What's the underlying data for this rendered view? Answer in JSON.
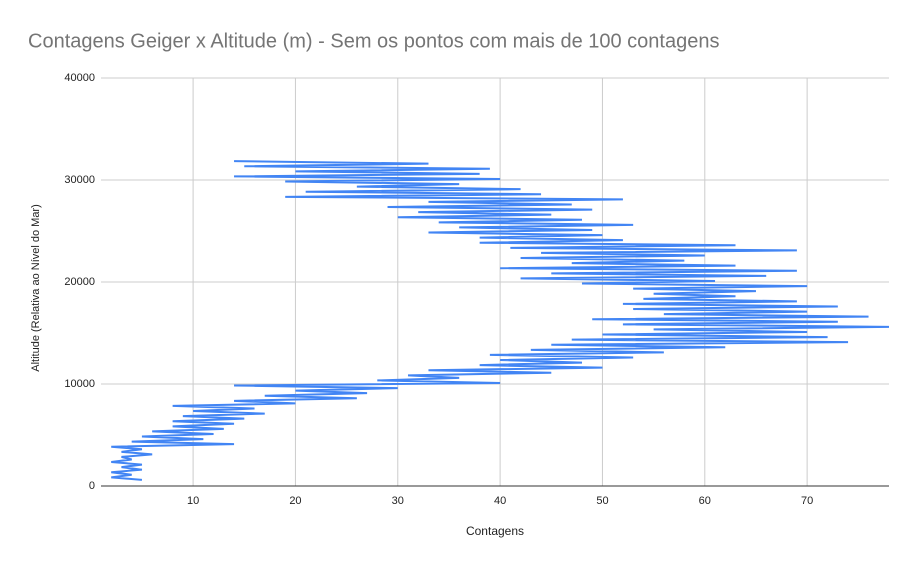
{
  "chart_data": {
    "type": "line",
    "title": "Contagens Geiger x Altitude (m) - Sem os pontos com mais de 100 contagens",
    "x_label": "Contagens",
    "y_label": "Altitude (Relativa ao Nível do Mar)",
    "xlim": [
      1,
      78
    ],
    "xticks": [
      10,
      20,
      30,
      40,
      50,
      60,
      70
    ],
    "ylim": [
      0,
      40000
    ],
    "yticks": [
      0,
      10000,
      20000,
      30000,
      40000
    ],
    "grid": true,
    "x": [
      5,
      2,
      4,
      2,
      5,
      3,
      5,
      2,
      4,
      3,
      6,
      3,
      5,
      2,
      14,
      4,
      11,
      5,
      12,
      6,
      13,
      8,
      14,
      8,
      15,
      9,
      17,
      10,
      16,
      8,
      20,
      14,
      26,
      17,
      27,
      20,
      30,
      14,
      40,
      28,
      36,
      31,
      45,
      33,
      50,
      38,
      48,
      40,
      53,
      39,
      56,
      43,
      62,
      45,
      74,
      47,
      72,
      50,
      70,
      55,
      78,
      52,
      73,
      49,
      76,
      56,
      70,
      53,
      73,
      52,
      69,
      54,
      63,
      55,
      65,
      53,
      70,
      48,
      61,
      42,
      66,
      45,
      69,
      40,
      63,
      47,
      58,
      42,
      60,
      44,
      69,
      41,
      63,
      38,
      52,
      38,
      50,
      33,
      49,
      36,
      53,
      34,
      48,
      30,
      45,
      32,
      49,
      29,
      47,
      33,
      52,
      19,
      44,
      21,
      42,
      26,
      36,
      19,
      40,
      14,
      38,
      20,
      39,
      15,
      33,
      14
    ],
    "series": [
      {
        "name": "Altitude (Relativa ao Nível do Mar)",
        "color": "#4285f4",
        "values": [
          600,
          850,
          1100,
          1350,
          1600,
          1850,
          2100,
          2350,
          2600,
          2850,
          3100,
          3350,
          3600,
          3850,
          4100,
          4350,
          4600,
          4850,
          5100,
          5350,
          5600,
          5850,
          6100,
          6350,
          6600,
          6850,
          7100,
          7350,
          7600,
          7850,
          8100,
          8350,
          8600,
          8850,
          9100,
          9350,
          9600,
          9850,
          10100,
          10350,
          10600,
          10850,
          11100,
          11350,
          11600,
          11850,
          12100,
          12350,
          12600,
          12850,
          13100,
          13350,
          13600,
          13850,
          14100,
          14350,
          14600,
          14850,
          15100,
          15350,
          15600,
          15850,
          16100,
          16350,
          16600,
          16850,
          17100,
          17350,
          17600,
          17850,
          18100,
          18350,
          18600,
          18850,
          19100,
          19350,
          19600,
          19850,
          20100,
          20350,
          20600,
          20850,
          21100,
          21350,
          21600,
          21850,
          22100,
          22350,
          22600,
          22850,
          23100,
          23350,
          23600,
          23850,
          24100,
          24350,
          24600,
          24850,
          25100,
          25350,
          25600,
          25850,
          26100,
          26350,
          26600,
          26850,
          27100,
          27350,
          27600,
          27850,
          28100,
          28350,
          28600,
          28850,
          29100,
          29350,
          29600,
          29850,
          30100,
          30350,
          30600,
          30850,
          31100,
          31350,
          31600,
          31850
        ]
      }
    ]
  }
}
